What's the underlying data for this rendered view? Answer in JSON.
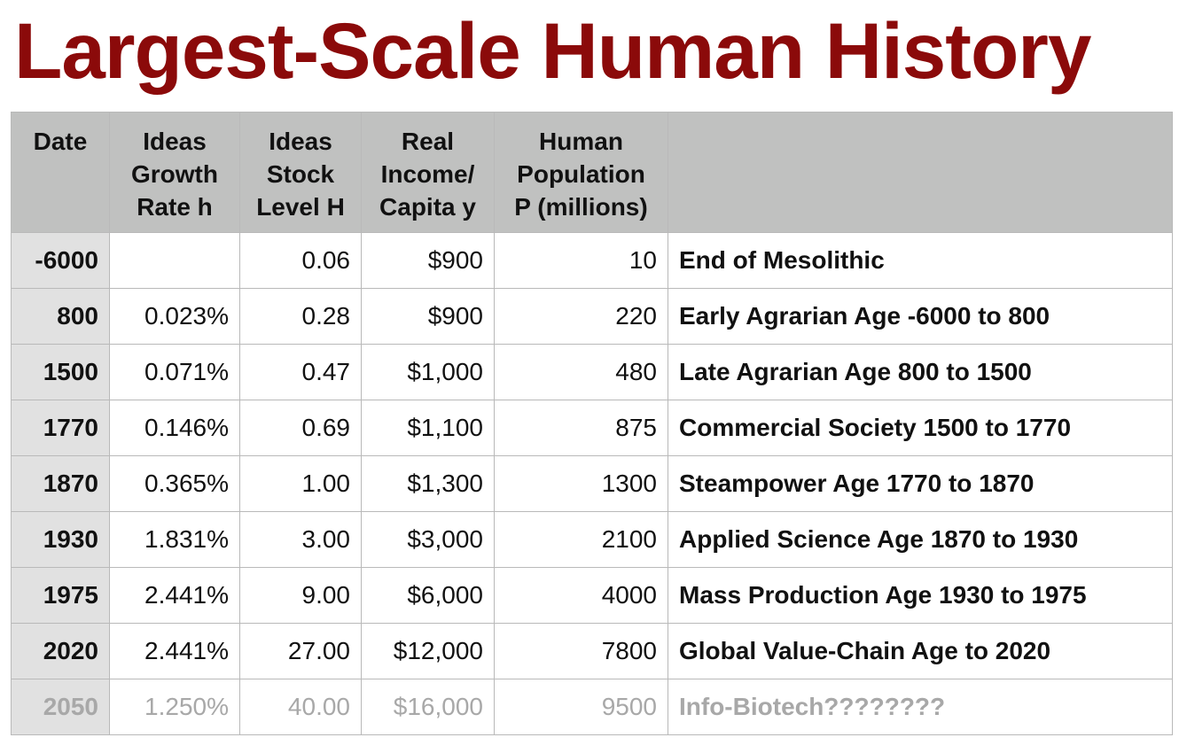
{
  "title": "Largest-Scale Human History",
  "columns": [
    {
      "lines": [
        "Date"
      ]
    },
    {
      "lines": [
        "Ideas",
        "Growth",
        "Rate h"
      ]
    },
    {
      "lines": [
        "Ideas",
        "Stock",
        "Level H"
      ]
    },
    {
      "lines": [
        "Real",
        "Income/",
        "Capita y"
      ]
    },
    {
      "lines": [
        "Human",
        "Population",
        "P (millions)"
      ]
    },
    {
      "lines": []
    }
  ],
  "rows": [
    {
      "date": "-6000",
      "growth": "",
      "stock": "0.06",
      "income": "$900",
      "population": "10",
      "era": "End of Mesolithic"
    },
    {
      "date": "800",
      "growth": "0.023%",
      "stock": "0.28",
      "income": "$900",
      "population": "220",
      "era": "Early Agrarian Age -6000 to 800"
    },
    {
      "date": "1500",
      "growth": "0.071%",
      "stock": "0.47",
      "income": "$1,000",
      "population": "480",
      "era": "Late Agrarian Age 800 to 1500"
    },
    {
      "date": "1770",
      "growth": "0.146%",
      "stock": "0.69",
      "income": "$1,100",
      "population": "875",
      "era": "Commercial Society 1500 to 1770"
    },
    {
      "date": "1870",
      "growth": "0.365%",
      "stock": "1.00",
      "income": "$1,300",
      "population": "1300",
      "era": "Steampower Age 1770 to 1870"
    },
    {
      "date": "1930",
      "growth": "1.831%",
      "stock": "3.00",
      "income": "$3,000",
      "population": "2100",
      "era": "Applied Science Age 1870 to 1930"
    },
    {
      "date": "1975",
      "growth": "2.441%",
      "stock": "9.00",
      "income": "$6,000",
      "population": "4000",
      "era": "Mass Production Age 1930 to 1975"
    },
    {
      "date": "2020",
      "growth": "2.441%",
      "stock": "27.00",
      "income": "$12,000",
      "population": "7800",
      "era": "Global Value-Chain Age to 2020"
    },
    {
      "date": "2050",
      "growth": "1.250%",
      "stock": "40.00",
      "income": "$16,000",
      "population": "9500",
      "era": "Info-Biotech????????",
      "projected": true
    }
  ],
  "colors": {
    "title": "#8b0a0a",
    "header_bg": "#c0c1c0",
    "date_col_bg": "#e1e1e1",
    "projected_text": "#a8a8a8"
  }
}
